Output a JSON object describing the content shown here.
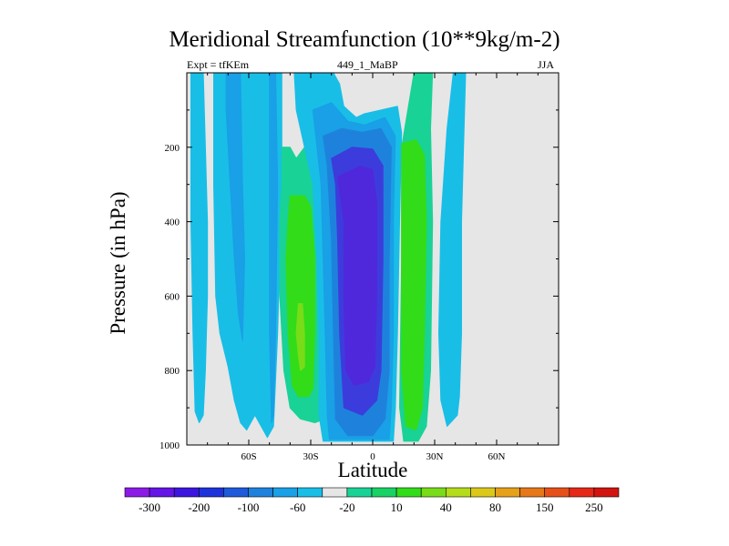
{
  "chart_data": {
    "type": "contour",
    "title": "Meridional Streamfunction (10**9kg/m-2)",
    "left_label": "Expt = tfKEm",
    "center_label": "449_1_MaBP",
    "right_label": "JJA",
    "xlabel": "Latitude",
    "ylabel": "Pressure (in hPa)",
    "x_ticks": [
      {
        "value": -60,
        "label": "60S"
      },
      {
        "value": -30,
        "label": "30S"
      },
      {
        "value": 0,
        "label": "0"
      },
      {
        "value": 30,
        "label": "30N"
      },
      {
        "value": 60,
        "label": "60N"
      }
    ],
    "y_ticks": [
      200,
      400,
      600,
      800,
      1000
    ],
    "xlim": [
      -90,
      90
    ],
    "ylim": [
      1000,
      0
    ],
    "background_color": "#e6e6e6",
    "colorbar": {
      "labels": [
        "-300",
        "-200",
        "-100",
        "-60",
        "-20",
        "10",
        "40",
        "80",
        "150",
        "250"
      ],
      "colors": [
        "#8c1ae6",
        "#6414e6",
        "#3c14e0",
        "#1e32dc",
        "#1e5ad9",
        "#1e82dc",
        "#19a0e6",
        "#19bee6",
        "#e6e6e6",
        "#19d296",
        "#19d264",
        "#32dc19",
        "#78dc19",
        "#b4dc19",
        "#dcc819",
        "#e6a019",
        "#e67819",
        "#e65019",
        "#e62819",
        "#d2140f"
      ]
    },
    "regions": [
      {
        "name": "cell-60s",
        "value": -20,
        "poly": [
          [
            -88,
            0
          ],
          [
            -82,
            0
          ],
          [
            -81,
            200
          ],
          [
            -80,
            400
          ],
          [
            -80,
            600
          ],
          [
            -81,
            800
          ],
          [
            -82,
            920
          ],
          [
            -84,
            940
          ],
          [
            -86,
            910
          ],
          [
            -87,
            700
          ],
          [
            -88,
            400
          ]
        ]
      },
      {
        "name": "cell-60s-inner",
        "value": -20,
        "poly": [
          [
            -87,
            350
          ],
          [
            -86,
            380
          ],
          [
            -86,
            450
          ],
          [
            -87,
            480
          ]
        ]
      },
      {
        "name": "cell-48s",
        "value": -20,
        "poly": [
          [
            -77,
            0
          ],
          [
            -44,
            0
          ],
          [
            -44,
            300
          ],
          [
            -46,
            700
          ],
          [
            -48,
            950
          ],
          [
            -51,
            980
          ],
          [
            -53,
            960
          ],
          [
            -57,
            920
          ],
          [
            -61,
            960
          ],
          [
            -64,
            940
          ],
          [
            -67,
            880
          ],
          [
            -70,
            790
          ],
          [
            -74,
            700
          ],
          [
            -76,
            600
          ],
          [
            -77,
            300
          ]
        ]
      },
      {
        "name": "cell-48s-inner",
        "value": -60,
        "poly": [
          [
            -71,
            0
          ],
          [
            -64,
            0
          ],
          [
            -63,
            300
          ],
          [
            -62,
            500
          ],
          [
            -63,
            720
          ],
          [
            -65,
            650
          ],
          [
            -67,
            500
          ],
          [
            -69,
            300
          ],
          [
            -71,
            100
          ]
        ]
      },
      {
        "name": "cell-44s-line",
        "value": -60,
        "poly": [
          [
            -50,
            0
          ],
          [
            -47,
            0
          ],
          [
            -46,
            300
          ],
          [
            -47,
            700
          ],
          [
            -48,
            920
          ],
          [
            -49,
            940
          ],
          [
            -50,
            700
          ],
          [
            -50,
            300
          ]
        ]
      },
      {
        "name": "cell-30s",
        "value": 10,
        "poly": [
          [
            -44,
            200
          ],
          [
            -40,
            200
          ],
          [
            -37,
            230
          ],
          [
            -33,
            200
          ],
          [
            -25,
            200
          ],
          [
            -24,
            400
          ],
          [
            -25,
            600
          ],
          [
            -24,
            800
          ],
          [
            -23,
            930
          ],
          [
            -28,
            940
          ],
          [
            -35,
            930
          ],
          [
            -40,
            900
          ],
          [
            -43,
            800
          ],
          [
            -45,
            600
          ],
          [
            -45,
            400
          ],
          [
            -44,
            300
          ]
        ]
      },
      {
        "name": "cell-30s-inner",
        "value": 40,
        "poly": [
          [
            -40,
            330
          ],
          [
            -33,
            330
          ],
          [
            -30,
            360
          ],
          [
            -28,
            500
          ],
          [
            -28,
            700
          ],
          [
            -29,
            850
          ],
          [
            -31,
            870
          ],
          [
            -36,
            870
          ],
          [
            -39,
            840
          ],
          [
            -41,
            700
          ],
          [
            -42,
            500
          ],
          [
            -41,
            400
          ]
        ]
      },
      {
        "name": "cell-30s-core",
        "value": 80,
        "poly": [
          [
            -36,
            620
          ],
          [
            -34,
            620
          ],
          [
            -33,
            700
          ],
          [
            -33,
            790
          ],
          [
            -35,
            800
          ],
          [
            -36,
            760
          ],
          [
            -37,
            700
          ]
        ]
      },
      {
        "name": "cell-eq",
        "value": -20,
        "poly": [
          [
            -38,
            0
          ],
          [
            -19,
            0
          ],
          [
            -16,
            30
          ],
          [
            -14,
            90
          ],
          [
            -8,
            120
          ],
          [
            -4,
            110
          ],
          [
            4,
            100
          ],
          [
            12,
            90
          ],
          [
            14,
            160
          ],
          [
            13,
            400
          ],
          [
            12,
            700
          ],
          [
            11,
            900
          ],
          [
            10,
            990
          ],
          [
            -24,
            990
          ],
          [
            -26,
            920
          ],
          [
            -26,
            700
          ],
          [
            -27,
            500
          ],
          [
            -29,
            300
          ],
          [
            -33,
            200
          ],
          [
            -37,
            100
          ]
        ]
      },
      {
        "name": "cell-eq-60",
        "value": -60,
        "poly": [
          [
            -29,
            100
          ],
          [
            -20,
            80
          ],
          [
            -12,
            130
          ],
          [
            -4,
            140
          ],
          [
            6,
            120
          ],
          [
            11,
            170
          ],
          [
            10,
            400
          ],
          [
            10,
            700
          ],
          [
            9,
            900
          ],
          [
            8,
            985
          ],
          [
            -21,
            985
          ],
          [
            -22,
            920
          ],
          [
            -23,
            700
          ],
          [
            -24,
            500
          ],
          [
            -25,
            300
          ],
          [
            -27,
            200
          ]
        ]
      },
      {
        "name": "cell-eq-100",
        "value": -100,
        "poly": [
          [
            -24,
            170
          ],
          [
            -15,
            150
          ],
          [
            -5,
            160
          ],
          [
            4,
            150
          ],
          [
            9,
            200
          ],
          [
            8,
            500
          ],
          [
            8,
            800
          ],
          [
            6,
            930
          ],
          [
            0,
            975
          ],
          [
            -12,
            975
          ],
          [
            -18,
            930
          ],
          [
            -19,
            700
          ],
          [
            -20,
            450
          ],
          [
            -22,
            250
          ]
        ]
      },
      {
        "name": "cell-eq-200",
        "value": -200,
        "poly": [
          [
            -20,
            230
          ],
          [
            -10,
            200
          ],
          [
            0,
            205
          ],
          [
            5,
            250
          ],
          [
            5,
            500
          ],
          [
            4,
            800
          ],
          [
            2,
            880
          ],
          [
            -5,
            920
          ],
          [
            -14,
            900
          ],
          [
            -16,
            700
          ],
          [
            -17,
            450
          ],
          [
            -18,
            300
          ]
        ]
      },
      {
        "name": "cell-eq-300",
        "value": -300,
        "poly": [
          [
            -17,
            280
          ],
          [
            -6,
            250
          ],
          [
            0,
            260
          ],
          [
            2,
            350
          ],
          [
            2,
            600
          ],
          [
            1,
            790
          ],
          [
            -2,
            830
          ],
          [
            -9,
            840
          ],
          [
            -13,
            800
          ],
          [
            -14,
            600
          ],
          [
            -14,
            400
          ]
        ]
      },
      {
        "name": "cell-eq-core",
        "value": -300,
        "poly": [
          [
            -11,
            600
          ],
          [
            -7,
            560
          ],
          [
            -5,
            600
          ],
          [
            -6,
            760
          ],
          [
            -9,
            790
          ],
          [
            -11,
            760
          ]
        ]
      },
      {
        "name": "cell-25n",
        "value": 10,
        "poly": [
          [
            20,
            0
          ],
          [
            29,
            0
          ],
          [
            28,
            150
          ],
          [
            29,
            400
          ],
          [
            28,
            800
          ],
          [
            26,
            950
          ],
          [
            22,
            990
          ],
          [
            15,
            990
          ],
          [
            13,
            900
          ],
          [
            14,
            500
          ],
          [
            14,
            200
          ],
          [
            17,
            100
          ]
        ]
      },
      {
        "name": "cell-25n-inner",
        "value": 40,
        "poly": [
          [
            14,
            190
          ],
          [
            21,
            180
          ],
          [
            25,
            220
          ],
          [
            26,
            400
          ],
          [
            25,
            700
          ],
          [
            24,
            900
          ],
          [
            21,
            960
          ],
          [
            16,
            950
          ],
          [
            14,
            800
          ],
          [
            14,
            400
          ]
        ]
      },
      {
        "name": "cell-45n",
        "value": -20,
        "poly": [
          [
            39,
            0
          ],
          [
            45,
            0
          ],
          [
            44,
            200
          ],
          [
            43,
            400
          ],
          [
            43,
            700
          ],
          [
            42,
            870
          ],
          [
            41,
            920
          ],
          [
            36,
            950
          ],
          [
            33,
            880
          ],
          [
            32,
            700
          ],
          [
            33,
            400
          ],
          [
            36,
            150
          ]
        ]
      }
    ]
  }
}
